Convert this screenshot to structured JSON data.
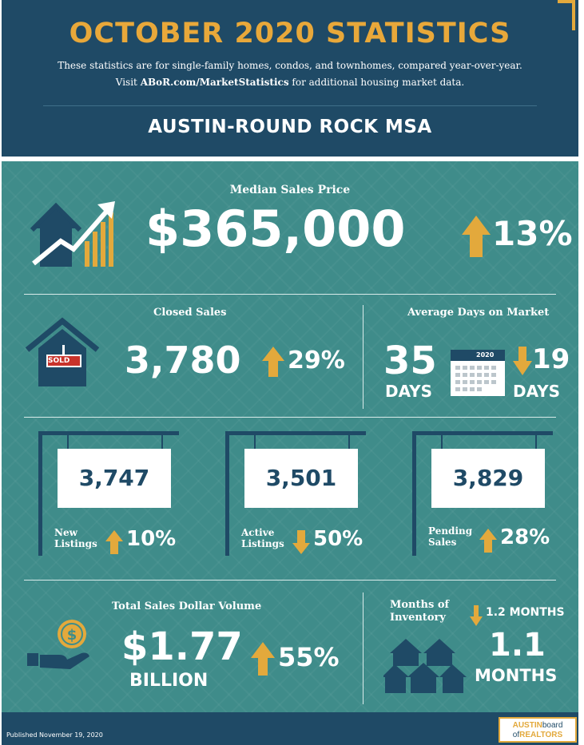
{
  "header": {
    "title": "OCTOBER 2020 STATISTICS",
    "line1": "These statistics are for single-family homes, condos, and townhomes, compared year-over-year.",
    "line2_prefix": "Visit ",
    "line2_link": "ABoR.com/MarketStatistics",
    "line2_suffix": " for additional housing market data.",
    "region": "AUSTIN-ROUND ROCK MSA"
  },
  "median_price": {
    "label": "Median Sales Price",
    "value": "$365,000",
    "change": "13%",
    "direction": "up"
  },
  "closed_sales": {
    "label": "Closed Sales",
    "value": "3,780",
    "change": "29%",
    "direction": "up",
    "sign_text": "SOLD"
  },
  "days_on_market": {
    "label": "Average Days on Market",
    "value": "35",
    "unit": "DAYS",
    "calendar_year": "2020",
    "change": "19",
    "change_unit": "DAYS",
    "direction": "down"
  },
  "listings": [
    {
      "value": "3,747",
      "label_line1": "New",
      "label_line2": "Listings",
      "change": "10%",
      "direction": "up"
    },
    {
      "value": "3,501",
      "label_line1": "Active",
      "label_line2": "Listings",
      "change": "50%",
      "direction": "down"
    },
    {
      "value": "3,829",
      "label_line1": "Pending",
      "label_line2": "Sales",
      "change": "28%",
      "direction": "up"
    }
  ],
  "dollar_volume": {
    "label": "Total Sales Dollar Volume",
    "value": "$1.77",
    "unit": "BILLION",
    "change": "55%",
    "direction": "up"
  },
  "inventory": {
    "label_line1": "Months of",
    "label_line2": "Inventory",
    "change": "1.2 MONTHS",
    "direction": "down",
    "value": "1.1",
    "unit": "MONTHS"
  },
  "footer": {
    "published": "Published November 19, 2020",
    "logo_line1a": "AUSTIN",
    "logo_line1b": "board",
    "logo_line2a": "of",
    "logo_line2b": "REALTORS"
  },
  "colors": {
    "navy": "#1f4a66",
    "teal": "#3f8c8a",
    "gold": "#e3a93c",
    "white": "#ffffff"
  }
}
